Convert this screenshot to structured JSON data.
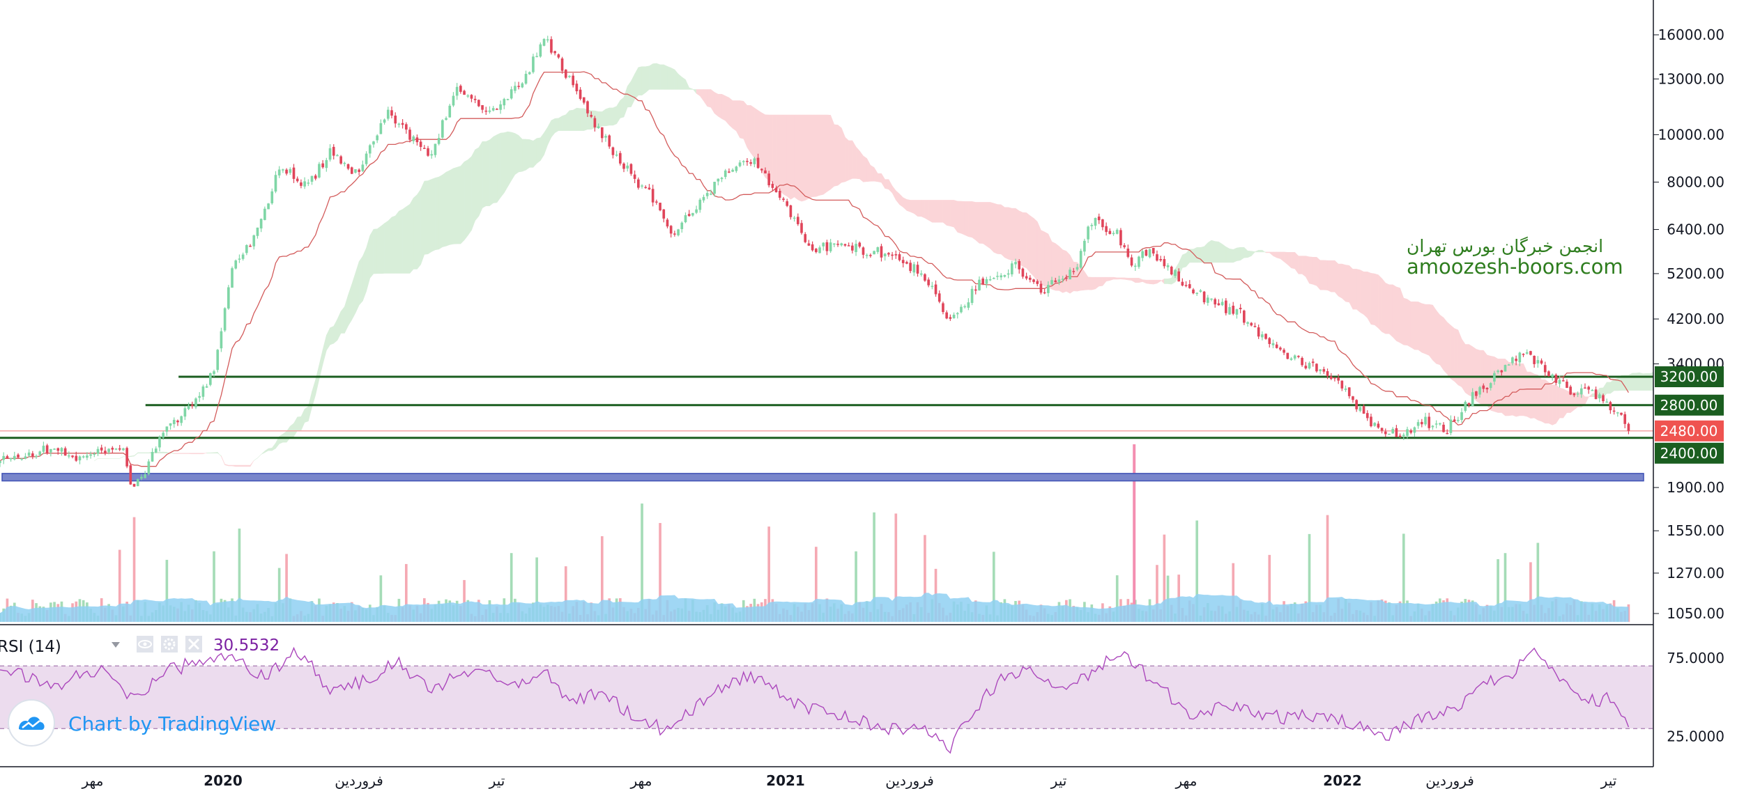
{
  "chart_data": {
    "type": "candlestick",
    "scale": "log",
    "price_axis": {
      "ticks": [
        "16000.00",
        "13000.00",
        "10000.00",
        "8000.00",
        "6400.00",
        "5200.00",
        "4200.00",
        "3400.00",
        "1900.00",
        "1550.00",
        "1270.00",
        "1050.00"
      ]
    },
    "time_axis": {
      "labels": [
        {
          "text": "مهر",
          "year": false
        },
        {
          "text": "2020",
          "year": true
        },
        {
          "text": "فروردین",
          "year": false
        },
        {
          "text": "تیر",
          "year": false
        },
        {
          "text": "مهر",
          "year": false
        },
        {
          "text": "2021",
          "year": true
        },
        {
          "text": "فروردین",
          "year": false
        },
        {
          "text": "تیر",
          "year": false
        },
        {
          "text": "مهر",
          "year": false
        },
        {
          "text": "2022",
          "year": true
        },
        {
          "text": "فروردین",
          "year": false
        },
        {
          "text": "تیر",
          "year": false
        }
      ]
    },
    "levels": [
      {
        "value": 3200,
        "label": "3200.00",
        "color": "#1b5e20"
      },
      {
        "value": 2800,
        "label": "2800.00",
        "color": "#1b5e20"
      },
      {
        "value": 2400,
        "label": "2400.00",
        "color": "#1b5e20"
      }
    ],
    "last_price": {
      "value": 2480,
      "label": "2480.00",
      "color": "#ef5350"
    },
    "support_zone": {
      "from": 1960,
      "to": 2030,
      "color": "#7986cb"
    },
    "price_path_anchors": [
      [
        0.0,
        2150
      ],
      [
        0.03,
        2280
      ],
      [
        0.05,
        2180
      ],
      [
        0.075,
        2330
      ],
      [
        0.08,
        1830
      ],
      [
        0.1,
        2500
      ],
      [
        0.12,
        2850
      ],
      [
        0.13,
        3400
      ],
      [
        0.14,
        5300
      ],
      [
        0.155,
        6300
      ],
      [
        0.17,
        8700
      ],
      [
        0.185,
        7800
      ],
      [
        0.2,
        9200
      ],
      [
        0.215,
        8300
      ],
      [
        0.235,
        11200
      ],
      [
        0.26,
        8900
      ],
      [
        0.275,
        12400
      ],
      [
        0.3,
        11000
      ],
      [
        0.32,
        13600
      ],
      [
        0.33,
        15700
      ],
      [
        0.345,
        12800
      ],
      [
        0.36,
        10500
      ],
      [
        0.38,
        8400
      ],
      [
        0.395,
        7400
      ],
      [
        0.405,
        6200
      ],
      [
        0.42,
        7000
      ],
      [
        0.44,
        8500
      ],
      [
        0.455,
        8900
      ],
      [
        0.47,
        7600
      ],
      [
        0.49,
        5900
      ],
      [
        0.51,
        5900
      ],
      [
        0.54,
        5700
      ],
      [
        0.56,
        5100
      ],
      [
        0.575,
        4100
      ],
      [
        0.595,
        5100
      ],
      [
        0.615,
        5400
      ],
      [
        0.63,
        4800
      ],
      [
        0.65,
        5300
      ],
      [
        0.66,
        6700
      ],
      [
        0.675,
        6300
      ],
      [
        0.685,
        5400
      ],
      [
        0.695,
        5800
      ],
      [
        0.71,
        5200
      ],
      [
        0.73,
        4600
      ],
      [
        0.75,
        4300
      ],
      [
        0.77,
        3700
      ],
      [
        0.79,
        3400
      ],
      [
        0.81,
        3100
      ],
      [
        0.83,
        2550
      ],
      [
        0.845,
        2420
      ],
      [
        0.86,
        2600
      ],
      [
        0.875,
        2500
      ],
      [
        0.89,
        2900
      ],
      [
        0.905,
        3200
      ],
      [
        0.92,
        3600
      ],
      [
        0.935,
        3300
      ],
      [
        0.95,
        3000
      ],
      [
        0.965,
        2950
      ],
      [
        0.98,
        2700
      ],
      [
        0.985,
        2480
      ]
    ],
    "rsi": {
      "title": "RSI (14)",
      "value_label": "30.5532",
      "upper": 70,
      "lower": 30,
      "tick_labels": [
        "75.0000",
        "25.0000"
      ],
      "anchors": [
        [
          0.0,
          70
        ],
        [
          0.03,
          56
        ],
        [
          0.06,
          68
        ],
        [
          0.08,
          48
        ],
        [
          0.1,
          66
        ],
        [
          0.12,
          73
        ],
        [
          0.14,
          78
        ],
        [
          0.16,
          62
        ],
        [
          0.18,
          80
        ],
        [
          0.2,
          55
        ],
        [
          0.22,
          60
        ],
        [
          0.24,
          72
        ],
        [
          0.26,
          55
        ],
        [
          0.275,
          63
        ],
        [
          0.29,
          71
        ],
        [
          0.31,
          58
        ],
        [
          0.33,
          66
        ],
        [
          0.345,
          47
        ],
        [
          0.365,
          55
        ],
        [
          0.38,
          40
        ],
        [
          0.4,
          30
        ],
        [
          0.42,
          42
        ],
        [
          0.44,
          60
        ],
        [
          0.46,
          64
        ],
        [
          0.48,
          46
        ],
        [
          0.5,
          40
        ],
        [
          0.52,
          35
        ],
        [
          0.54,
          30
        ],
        [
          0.56,
          29
        ],
        [
          0.575,
          18
        ],
        [
          0.59,
          44
        ],
        [
          0.605,
          60
        ],
        [
          0.62,
          68
        ],
        [
          0.64,
          54
        ],
        [
          0.66,
          65
        ],
        [
          0.68,
          80
        ],
        [
          0.695,
          62
        ],
        [
          0.705,
          54
        ],
        [
          0.72,
          36
        ],
        [
          0.74,
          45
        ],
        [
          0.76,
          41
        ],
        [
          0.78,
          36
        ],
        [
          0.8,
          40
        ],
        [
          0.82,
          32
        ],
        [
          0.84,
          25
        ],
        [
          0.86,
          38
        ],
        [
          0.88,
          44
        ],
        [
          0.9,
          60
        ],
        [
          0.915,
          66
        ],
        [
          0.93,
          80
        ],
        [
          0.945,
          60
        ],
        [
          0.96,
          48
        ],
        [
          0.975,
          49
        ],
        [
          0.985,
          31
        ]
      ]
    },
    "volume_spike": {
      "position": 0.686
    }
  },
  "watermark": {
    "line1": "انجمن خبرگان بورس تهران",
    "line2": "amoozesh-boors.com"
  },
  "logo": {
    "text": "Chart by TradingView"
  },
  "colors": {
    "up": "#26a69a",
    "up_soft": "#7fd6a6",
    "down": "#e0455a",
    "baseline": "#d35b5b",
    "cloud_up": "#d8eed9",
    "cloud_down": "#fbd5d8",
    "volume_ma": "#8fd0f2",
    "rsi_line": "#ab47bc",
    "rsi_band": "#ecdcee",
    "axis_text": "#131722",
    "levels": "#1b5e20"
  }
}
